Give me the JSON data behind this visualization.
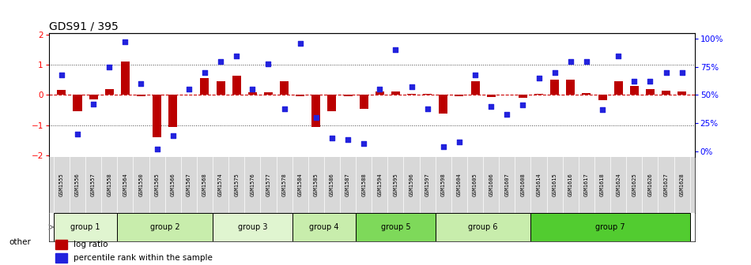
{
  "title": "GDS91 / 395",
  "samples": [
    "GSM1555",
    "GSM1556",
    "GSM1557",
    "GSM1558",
    "GSM1564",
    "GSM1550",
    "GSM1565",
    "GSM1566",
    "GSM1567",
    "GSM1568",
    "GSM1574",
    "GSM1575",
    "GSM1576",
    "GSM1577",
    "GSM1578",
    "GSM1584",
    "GSM1585",
    "GSM1586",
    "GSM1587",
    "GSM1588",
    "GSM1594",
    "GSM1595",
    "GSM1596",
    "GSM1597",
    "GSM1598",
    "GSM1604",
    "GSM1605",
    "GSM1606",
    "GSM1607",
    "GSM1608",
    "GSM1614",
    "GSM1615",
    "GSM1616",
    "GSM1617",
    "GSM1618",
    "GSM1624",
    "GSM1625",
    "GSM1626",
    "GSM1627",
    "GSM1628"
  ],
  "log_ratio": [
    0.18,
    -0.55,
    -0.15,
    0.2,
    1.1,
    -0.05,
    -1.4,
    -1.05,
    0.02,
    0.55,
    0.45,
    0.65,
    0.1,
    0.1,
    0.45,
    -0.05,
    -1.05,
    -0.55,
    -0.05,
    -0.45,
    0.12,
    0.12,
    0.05,
    0.05,
    -0.62,
    -0.05,
    0.45,
    -0.08,
    0.02,
    -0.1,
    0.05,
    0.5,
    0.5,
    0.06,
    -0.18,
    0.45,
    0.3,
    0.2,
    0.15,
    0.12
  ],
  "percentile": [
    68,
    15,
    42,
    75,
    97,
    60,
    2,
    14,
    55,
    70,
    80,
    85,
    55,
    78,
    38,
    96,
    30,
    12,
    10,
    7,
    55,
    90,
    57,
    38,
    4,
    8,
    68,
    40,
    33,
    41,
    65,
    70,
    80,
    80,
    37,
    85,
    62,
    62,
    70,
    70
  ],
  "groups": [
    {
      "name": "group 1",
      "start": 0,
      "end": 4
    },
    {
      "name": "group 2",
      "start": 4,
      "end": 10
    },
    {
      "name": "group 3",
      "start": 10,
      "end": 15
    },
    {
      "name": "group 4",
      "start": 15,
      "end": 19
    },
    {
      "name": "group 5",
      "start": 19,
      "end": 24
    },
    {
      "name": "group 6",
      "start": 24,
      "end": 30
    },
    {
      "name": "group 7",
      "start": 30,
      "end": 40
    }
  ],
  "group_colors": [
    "#e0f5d0",
    "#c8edac",
    "#e0f5d0",
    "#c8edac",
    "#7ed95a",
    "#c8edac",
    "#52cc30"
  ],
  "tick_bg_color": "#d8d8d8",
  "bar_color": "#bb0000",
  "dot_color": "#2222dd",
  "zero_line_color": "#cc0000",
  "dotted_line_color": "#444444",
  "bg_color": "#ffffff",
  "yticks_left": [
    -2,
    -1,
    0,
    1,
    2
  ],
  "yticks_right": [
    0,
    25,
    50,
    75,
    100
  ],
  "legend_items": [
    "log ratio",
    "percentile rank within the sample"
  ],
  "other_label": "other"
}
